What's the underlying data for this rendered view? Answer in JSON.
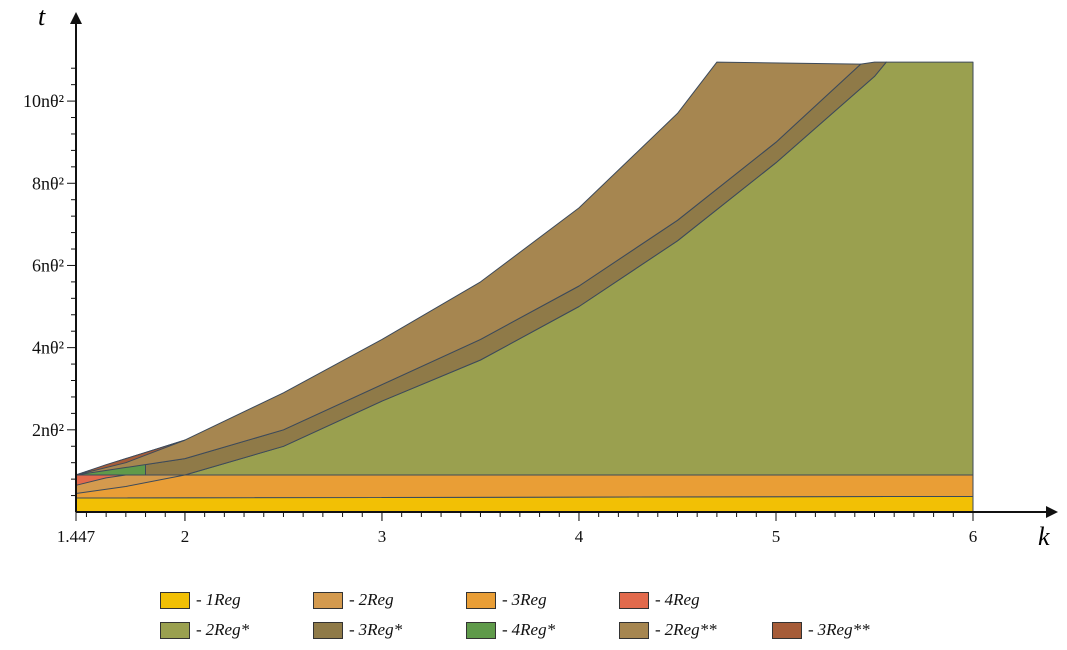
{
  "chart_data": {
    "type": "area",
    "xlabel": "k",
    "ylabel": "t",
    "xlim": [
      1.447,
      6
    ],
    "ylim": [
      0,
      11.0
    ],
    "x_ticks": [
      {
        "value": 1.447,
        "label": "1.447"
      },
      {
        "value": 2,
        "label": "2"
      },
      {
        "value": 3,
        "label": "3"
      },
      {
        "value": 4,
        "label": "4"
      },
      {
        "value": 5,
        "label": "5"
      },
      {
        "value": 6,
        "label": "6"
      }
    ],
    "y_ticks": [
      {
        "value": 2,
        "label": "2nθ²"
      },
      {
        "value": 4,
        "label": "4nθ²"
      },
      {
        "value": 6,
        "label": "6nθ²"
      },
      {
        "value": 8,
        "label": "8nθ²"
      },
      {
        "value": 10,
        "label": "10nθ²"
      }
    ],
    "y_unit": "nθ²",
    "regions": [
      {
        "name": "1Reg",
        "color": "#f2c005",
        "lower": [
          [
            1.447,
            0
          ],
          [
            6,
            0
          ]
        ],
        "upper": [
          [
            1.447,
            0.34
          ],
          [
            6,
            0.38
          ]
        ]
      },
      {
        "name": "3Reg",
        "color": "#e99e36",
        "lower": [
          [
            1.447,
            0.34
          ],
          [
            6,
            0.38
          ]
        ],
        "upper": [
          [
            1.447,
            0.9
          ],
          [
            6,
            0.9
          ]
        ]
      },
      {
        "name": "2Reg",
        "color": "#d49a4e",
        "lower": [
          [
            1.447,
            0.45
          ],
          [
            1.7,
            0.62
          ],
          [
            2,
            0.9
          ],
          [
            6,
            0.9
          ]
        ],
        "upper": [
          [
            1.447,
            0.9
          ],
          [
            6,
            0.9
          ]
        ]
      },
      {
        "name": "4Reg",
        "color": "#e26a4c",
        "lower": [
          [
            1.447,
            0.65
          ],
          [
            1.6,
            0.83
          ],
          [
            1.7,
            0.9
          ]
        ],
        "upper": [
          [
            1.447,
            0.9
          ],
          [
            1.7,
            0.9
          ]
        ]
      },
      {
        "name": "2Reg*",
        "color": "#9aa04f",
        "lower": [
          [
            1.447,
            0.9
          ],
          [
            6,
            0.9
          ]
        ],
        "upper": [
          [
            2,
            0.9
          ],
          [
            2.5,
            1.6
          ],
          [
            3,
            2.7
          ],
          [
            3.5,
            3.7
          ],
          [
            4,
            5.0
          ],
          [
            4.5,
            6.6
          ],
          [
            5,
            8.5
          ],
          [
            5.5,
            10.6
          ],
          [
            5.56,
            10.95
          ],
          [
            6,
            10.95
          ]
        ]
      },
      {
        "name": "3Reg*",
        "color": "#8f7a48",
        "lower": [
          [
            1.447,
            0.9
          ],
          [
            1.7,
            0.9
          ],
          [
            2,
            0.9
          ],
          [
            2.5,
            1.6
          ],
          [
            3,
            2.7
          ],
          [
            3.5,
            3.7
          ],
          [
            4,
            5.0
          ],
          [
            4.5,
            6.6
          ],
          [
            5,
            8.5
          ],
          [
            5.5,
            10.6
          ],
          [
            5.56,
            10.95
          ]
        ],
        "upper": [
          [
            1.447,
            0.9
          ],
          [
            2,
            1.3
          ],
          [
            2.5,
            2.0
          ],
          [
            3,
            3.1
          ],
          [
            3.5,
            4.2
          ],
          [
            4,
            5.5
          ],
          [
            4.5,
            7.1
          ],
          [
            5,
            9.0
          ],
          [
            5.43,
            10.9
          ],
          [
            5.5,
            10.95
          ]
        ]
      },
      {
        "name": "4Reg*",
        "color": "#5f9a4a",
        "lower": [
          [
            1.447,
            0.9
          ],
          [
            1.8,
            0.9
          ]
        ],
        "upper": [
          [
            1.447,
            0.9
          ],
          [
            1.55,
            1.06
          ],
          [
            1.7,
            1.2
          ],
          [
            1.8,
            1.3
          ]
        ]
      },
      {
        "name": "2Reg**",
        "color": "#a68650",
        "lower": [
          [
            1.447,
            0.9
          ],
          [
            2,
            1.3
          ],
          [
            2.5,
            2.0
          ],
          [
            3,
            3.1
          ],
          [
            3.5,
            4.2
          ],
          [
            4,
            5.5
          ],
          [
            4.5,
            7.1
          ],
          [
            5,
            9.0
          ],
          [
            5.43,
            10.9
          ]
        ],
        "upper": [
          [
            1.447,
            0.9
          ],
          [
            1.7,
            1.3
          ],
          [
            2,
            1.75
          ],
          [
            2.5,
            2.9
          ],
          [
            3,
            4.2
          ],
          [
            3.5,
            5.6
          ],
          [
            4,
            7.4
          ],
          [
            4.5,
            9.7
          ],
          [
            4.7,
            10.95
          ],
          [
            5.43,
            10.9
          ]
        ]
      },
      {
        "name": "3Reg**",
        "color": "#a65c38",
        "lower": [
          [
            1.447,
            0.9
          ],
          [
            1.7,
            1.2
          ],
          [
            2,
            1.75
          ]
        ],
        "upper": [
          [
            1.447,
            0.9
          ],
          [
            1.6,
            1.15
          ],
          [
            1.7,
            1.3
          ],
          [
            2,
            1.75
          ]
        ]
      }
    ]
  },
  "legend": {
    "dash": "-",
    "row1": [
      {
        "name": "1Reg",
        "color": "#f2c005"
      },
      {
        "name": "2Reg",
        "color": "#d49a4e"
      },
      {
        "name": "3Reg",
        "color": "#e99e36"
      },
      {
        "name": "4Reg",
        "color": "#e26a4c"
      }
    ],
    "row2": [
      {
        "name": "2Reg*",
        "color": "#9aa04f"
      },
      {
        "name": "3Reg*",
        "color": "#8f7a48"
      },
      {
        "name": "4Reg*",
        "color": "#5f9a4a"
      },
      {
        "name": "2Reg**",
        "color": "#a68650"
      },
      {
        "name": "3Reg**",
        "color": "#a65c38"
      }
    ]
  }
}
